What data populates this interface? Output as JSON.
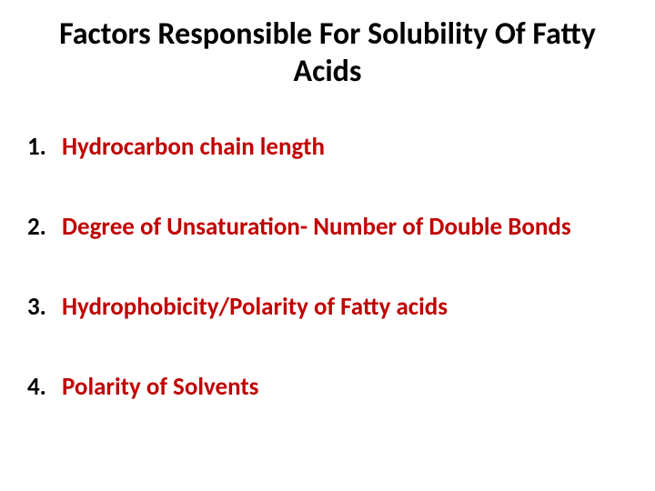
{
  "slide": {
    "title": "Factors Responsible For Solubility Of Fatty Acids",
    "title_fontsize": 34,
    "title_color": "#000000",
    "background_color": "#ffffff",
    "list": {
      "item_fontsize": 27,
      "number_color": "#000000",
      "text_color": "#c00000",
      "items": [
        {
          "number": "1.",
          "text": "Hydrocarbon chain length"
        },
        {
          "number": "2.",
          "text": "Degree of Unsaturation- Number of Double Bonds"
        },
        {
          "number": "3.",
          "text": "Hydrophobicity/Polarity of Fatty acids"
        },
        {
          "number": "4.",
          "text": "Polarity of Solvents"
        }
      ]
    }
  }
}
